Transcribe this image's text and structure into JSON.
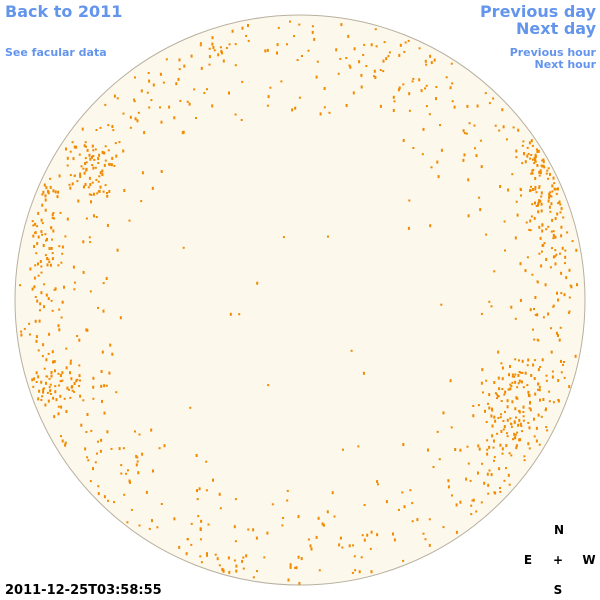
{
  "links": {
    "back": "Back to 2011",
    "facular": "See facular data",
    "previous_day": "Previous day",
    "next_day": "Next day",
    "previous_hour": "Previous hour",
    "next_hour": "Next hour"
  },
  "timestamp": "2011-12-25T03:58:55",
  "compass": {
    "north": "N",
    "east": "E",
    "center": "+",
    "west": "W",
    "south": "S"
  }
}
